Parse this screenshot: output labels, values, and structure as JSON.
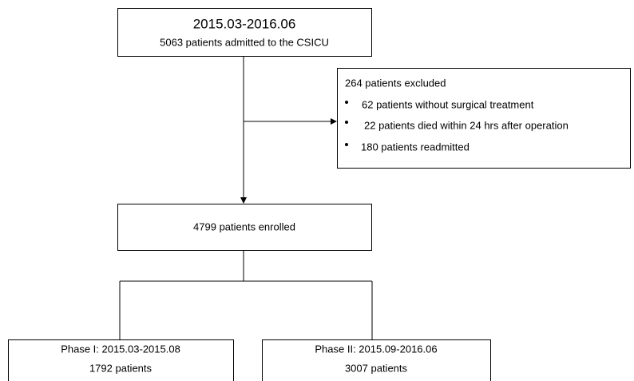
{
  "nodes": [
    {
      "title": "2015.03-2016.06",
      "label": "5063 patients admitted to the CSICU"
    },
    {
      "title": "264 patients excluded",
      "items": [
        "62 patients without surgical treatment",
        "22 patients died within 24 hrs after operation",
        "180 patients readmitted"
      ]
    },
    {
      "label": "4799 patients enrolled"
    },
    {
      "title": "Phase I: 2015.03-2015.08",
      "label": "1792 patients"
    },
    {
      "title": "Phase II: 2015.09-2016.06",
      "label": "3007 patients"
    }
  ]
}
